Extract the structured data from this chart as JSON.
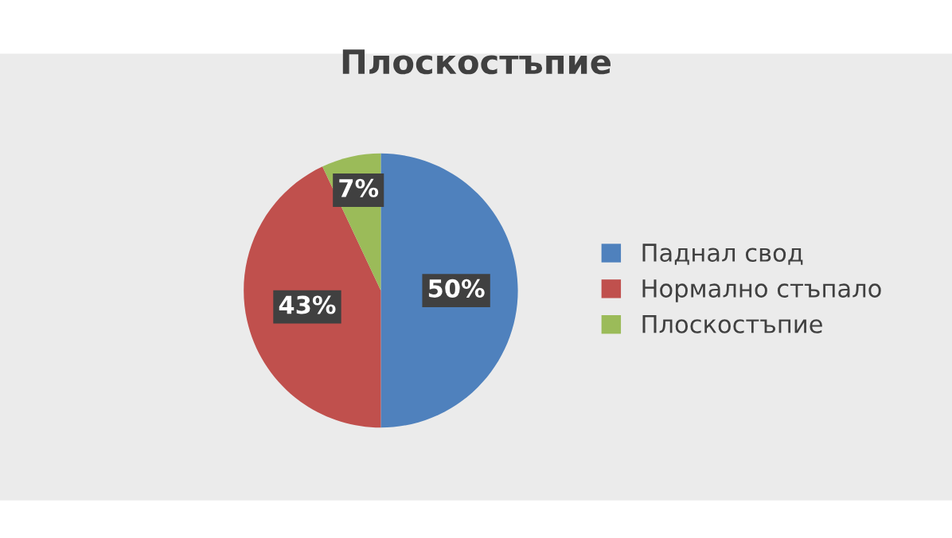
{
  "chart_data": {
    "type": "pie",
    "title": "Плоскостъпие",
    "categories": [
      "Паднал свод",
      "Нормално стъпало",
      "Плоскостъпие"
    ],
    "values": [
      50,
      43,
      7
    ],
    "colors": [
      "#4f81bd",
      "#c0504d",
      "#9bbb59"
    ],
    "value_labels": [
      "50%",
      "43%",
      "7%"
    ],
    "legend": "right"
  }
}
